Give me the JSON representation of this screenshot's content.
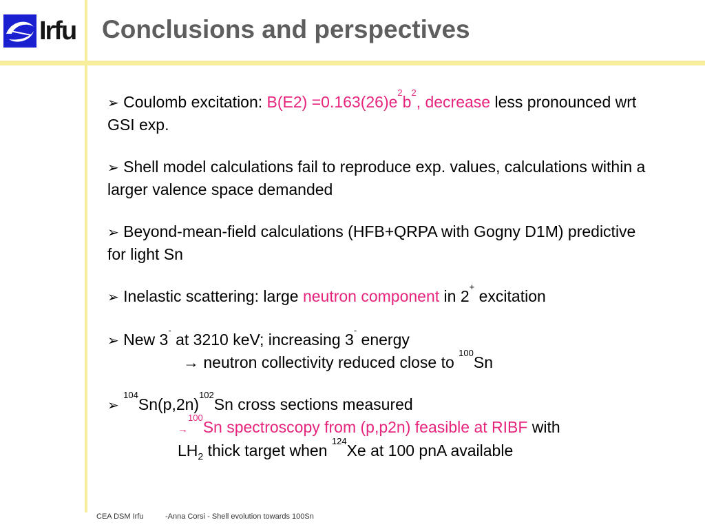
{
  "header": {
    "logo_text": "Irfu",
    "title": "Conclusions and perspectives"
  },
  "bullets": {
    "b1": {
      "t1": "Coulomb excitation: ",
      "t2": "B(E2) =0.163(26)e",
      "sup1": "2",
      "t3": "b",
      "sup2": "2",
      "t4": ", decrease",
      "t5": " less pronounced wrt GSI exp."
    },
    "b2": {
      "t1": "Shell model calculations fail to reproduce exp. values, calculations within a larger valence space demanded"
    },
    "b3": {
      "t1": "Beyond-mean-field calculations (HFB+QRPA with Gogny D1M) predictive for light Sn"
    },
    "b4": {
      "t1": "Inelastic scattering: large ",
      "t2": "neutron component",
      "t3": " in 2",
      "sup1": "+",
      "t4": " excitation"
    },
    "b5": {
      "t1": "New 3",
      "sup1": "-",
      "t2": " at 3210 keV; increasing 3",
      "sup2": "-",
      "t3": " energy",
      "line2_t1": "→ neutron collectivity reduced close to ",
      "line2_sup": "100",
      "line2_t2": "Sn"
    },
    "b6": {
      "sup1": "104",
      "t1": "Sn(p,2n)",
      "sup2": "102",
      "t2": "Sn cross sections measured",
      "line2_arrow": "→",
      "line2_sup": "100",
      "line2_t1": "Sn spectroscopy  from (p,p2n) feasible at RIBF",
      "line2_t2": " with",
      "line3_t1": "LH",
      "line3_sub": "2",
      "line3_t2": " thick target when ",
      "line3_sup": "124",
      "line3_t3": "Xe at 100 pnA available"
    }
  },
  "footer": {
    "org": "CEA DSM Irfu",
    "author": "-Anna Corsi -   Shell evolution towards 100Sn"
  }
}
